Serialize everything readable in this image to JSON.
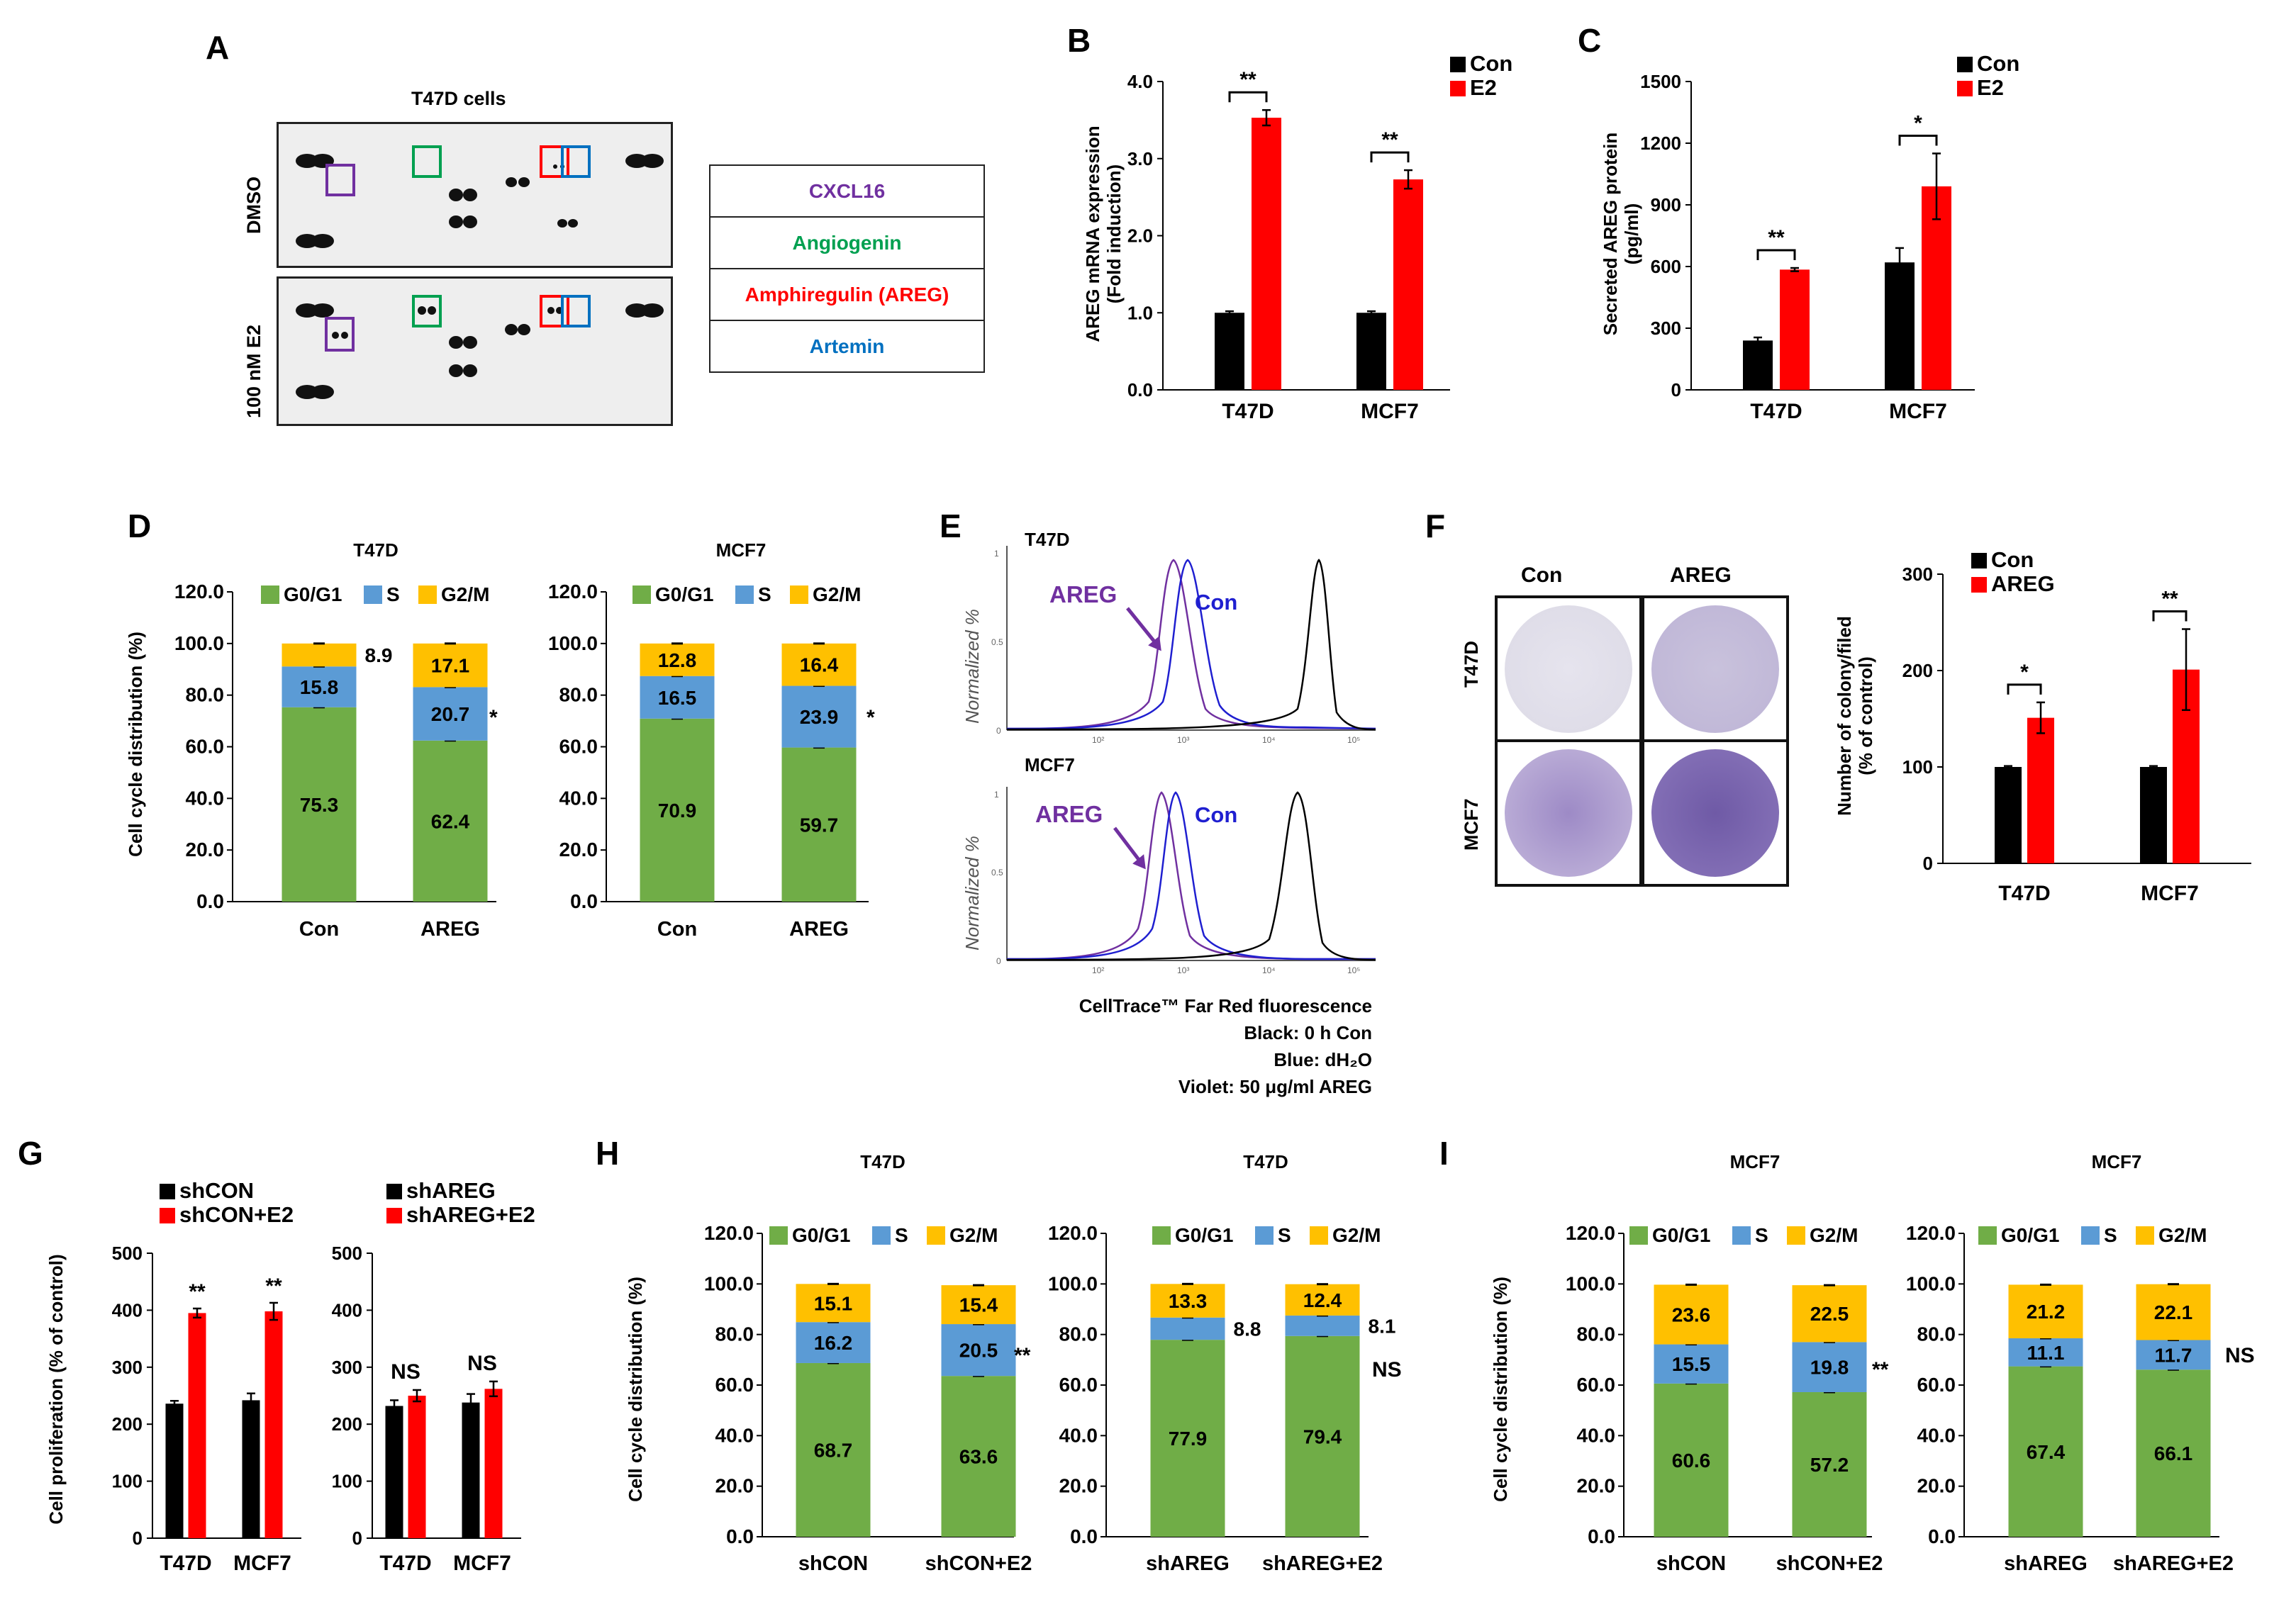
{
  "panel_letters": [
    "A",
    "B",
    "C",
    "D",
    "E",
    "F",
    "G",
    "H",
    "I"
  ],
  "panel_A": {
    "title": "T47D cells",
    "row_labels": [
      "DMSO",
      "100 nM E2"
    ],
    "key": [
      {
        "label": "CXCL16",
        "color": "#7030a0"
      },
      {
        "label": "Angiogenin",
        "color": "#00a050"
      },
      {
        "label": "Amphiregulin (AREG)",
        "color": "#ff0000"
      },
      {
        "label": "Artemin",
        "color": "#0070c0"
      }
    ]
  },
  "panel_E": {
    "row_labels": [
      "T47D",
      "MCF7"
    ],
    "ylabel": "Normalized %",
    "series_labels": {
      "areg": "AREG",
      "con": "Con"
    },
    "yticks": [
      "1",
      "0.5",
      "0"
    ],
    "xticks": [
      "10²",
      "10³",
      "10⁴",
      "10⁵"
    ],
    "caption": [
      "CellTrace™ Far Red fluorescence",
      "Black: 0 h Con",
      "Blue: dH₂O",
      "Violet: 50 μg/ml AREG"
    ],
    "colors": {
      "areg": "#7030a0",
      "con": "#1f1fd0",
      "zero_h": "#000000"
    }
  },
  "panel_F_images": {
    "col_labels": [
      "Con",
      "AREG"
    ],
    "row_labels": [
      "T47D",
      "MCF7"
    ]
  },
  "colors": {
    "black": "#000000",
    "red": "#ff0000",
    "g0g1": "#70ad47",
    "s": "#5b9bd5",
    "g2m": "#ffc000"
  },
  "chart_data": [
    {
      "id": "B",
      "type": "bar",
      "title": "",
      "ylabel": "AREG mRNA expression (Fold induction)",
      "categories": [
        "T47D",
        "MCF7"
      ],
      "series": [
        {
          "name": "Con",
          "values": [
            1.0,
            1.0
          ],
          "errors": [
            0.02,
            0.02
          ],
          "color": "#000000"
        },
        {
          "name": "E2",
          "values": [
            3.53,
            2.73
          ],
          "errors": [
            0.1,
            0.12
          ],
          "color": "#ff0000"
        }
      ],
      "ylim": [
        0,
        4
      ],
      "yticks": [
        "0.0",
        "1.0",
        "2.0",
        "3.0",
        "4.0"
      ],
      "yticks_values": [
        0,
        1,
        2,
        3,
        4
      ],
      "significance": [
        "**",
        "**"
      ]
    },
    {
      "id": "C",
      "type": "bar",
      "title": "",
      "ylabel": "Secreted AREG protein (pg/ml)",
      "categories": [
        "T47D",
        "MCF7"
      ],
      "series": [
        {
          "name": "Con",
          "values": [
            240,
            620
          ],
          "errors": [
            15,
            70
          ],
          "color": "#000000"
        },
        {
          "name": "E2",
          "values": [
            585,
            990
          ],
          "errors": [
            8,
            160
          ],
          "color": "#ff0000"
        }
      ],
      "ylim": [
        0,
        1500
      ],
      "yticks": [
        "0",
        "300",
        "600",
        "900",
        "1200",
        "1500"
      ],
      "yticks_values": [
        0,
        300,
        600,
        900,
        1200,
        1500
      ],
      "significance": [
        "**",
        "*"
      ]
    },
    {
      "id": "D1",
      "type": "stacked_bar",
      "title": "T47D",
      "ylabel": "Cell cycle distribution (%)",
      "categories": [
        "Con",
        "AREG"
      ],
      "series": [
        {
          "name": "G0/G1",
          "values": [
            75.3,
            62.4
          ],
          "labels": [
            "75.3",
            "62.4"
          ]
        },
        {
          "name": "S",
          "values": [
            15.8,
            20.7
          ],
          "labels": [
            "15.8",
            "20.7"
          ]
        },
        {
          "name": "G2/M",
          "values": [
            8.9,
            17.1
          ],
          "labels": [
            "8.9",
            "17.1"
          ]
        }
      ],
      "ylim": [
        0,
        120
      ],
      "annotation": "*"
    },
    {
      "id": "D2",
      "type": "stacked_bar",
      "title": "MCF7",
      "ylabel": "",
      "categories": [
        "Con",
        "AREG"
      ],
      "series": [
        {
          "name": "G0/G1",
          "values": [
            70.9,
            59.7
          ],
          "labels": [
            "70.9",
            "59.7"
          ]
        },
        {
          "name": "S",
          "values": [
            16.5,
            23.9
          ],
          "labels": [
            "16.5",
            "23.9"
          ]
        },
        {
          "name": "G2/M",
          "values": [
            12.8,
            16.4
          ],
          "labels": [
            "12.8",
            "16.4"
          ]
        }
      ],
      "ylim": [
        0,
        120
      ],
      "annotation": "*"
    },
    {
      "id": "F",
      "type": "bar",
      "title": "",
      "ylabel": "Number of colony/filed (% of control)",
      "categories": [
        "T47D",
        "MCF7"
      ],
      "series": [
        {
          "name": "Con",
          "values": [
            100,
            100
          ],
          "errors": [
            1,
            1
          ],
          "color": "#000000"
        },
        {
          "name": "AREG",
          "values": [
            151,
            201
          ],
          "errors": [
            16,
            42
          ],
          "color": "#ff0000"
        }
      ],
      "ylim": [
        0,
        300
      ],
      "yticks": [
        "0",
        "100",
        "200",
        "300"
      ],
      "yticks_values": [
        0,
        100,
        200,
        300
      ],
      "significance": [
        "*",
        "**"
      ]
    },
    {
      "id": "G1",
      "type": "bar",
      "title": "",
      "ylabel": "Cell proliferation (% of control)",
      "categories": [
        "T47D",
        "MCF7"
      ],
      "series": [
        {
          "name": "shCON",
          "values": [
            236,
            242
          ],
          "errors": [
            5,
            12
          ],
          "color": "#000000"
        },
        {
          "name": "shCON+E2",
          "values": [
            395,
            398
          ],
          "errors": [
            8,
            15
          ],
          "color": "#ff0000"
        }
      ],
      "ylim": [
        0,
        500
      ],
      "yticks": [
        "0",
        "100",
        "200",
        "300",
        "400",
        "500"
      ],
      "yticks_values": [
        0,
        100,
        200,
        300,
        400,
        500
      ],
      "significance": [
        "**",
        "**"
      ]
    },
    {
      "id": "G2",
      "type": "bar",
      "title": "",
      "ylabel": "",
      "categories": [
        "T47D",
        "MCF7"
      ],
      "series": [
        {
          "name": "shAREG",
          "values": [
            232,
            238
          ],
          "errors": [
            10,
            15
          ],
          "color": "#000000"
        },
        {
          "name": "shAREG+E2",
          "values": [
            250,
            262
          ],
          "errors": [
            10,
            13
          ],
          "color": "#ff0000"
        }
      ],
      "ylim": [
        0,
        500
      ],
      "yticks": [
        "0",
        "100",
        "200",
        "300",
        "400",
        "500"
      ],
      "yticks_values": [
        0,
        100,
        200,
        300,
        400,
        500
      ],
      "significance": [
        "NS",
        "NS"
      ]
    },
    {
      "id": "H1",
      "type": "stacked_bar",
      "title": "T47D",
      "ylabel": "Cell cycle distribution (%)",
      "categories": [
        "shCON",
        "shCON+E2"
      ],
      "series": [
        {
          "name": "G0/G1",
          "values": [
            68.7,
            63.6
          ],
          "labels": [
            "68.7",
            "63.6"
          ]
        },
        {
          "name": "S",
          "values": [
            16.2,
            20.5
          ],
          "labels": [
            "16.2",
            "20.5"
          ]
        },
        {
          "name": "G2/M",
          "values": [
            15.1,
            15.4
          ],
          "labels": [
            "15.1",
            "15.4"
          ]
        }
      ],
      "ylim": [
        0,
        120
      ],
      "annotation": "**"
    },
    {
      "id": "H2",
      "type": "stacked_bar",
      "title": "T47D",
      "ylabel": "",
      "categories": [
        "shAREG",
        "shAREG+E2"
      ],
      "series": [
        {
          "name": "G0/G1",
          "values": [
            77.9,
            79.4
          ],
          "labels": [
            "77.9",
            "79.4"
          ]
        },
        {
          "name": "S",
          "values": [
            8.8,
            8.1
          ],
          "labels": [
            "8.8",
            "8.1"
          ]
        },
        {
          "name": "G2/M",
          "values": [
            13.3,
            12.4
          ],
          "labels": [
            "13.3",
            "12.4"
          ]
        }
      ],
      "ylim": [
        0,
        120
      ],
      "annotation": "NS"
    },
    {
      "id": "I1",
      "type": "stacked_bar",
      "title": "MCF7",
      "ylabel": "Cell cycle distribution (%)",
      "categories": [
        "shCON",
        "shCON+E2"
      ],
      "series": [
        {
          "name": "G0/G1",
          "values": [
            60.6,
            57.2
          ],
          "labels": [
            "60.6",
            "57.2"
          ]
        },
        {
          "name": "S",
          "values": [
            15.5,
            19.8
          ],
          "labels": [
            "15.5",
            "19.8"
          ]
        },
        {
          "name": "G2/M",
          "values": [
            23.6,
            22.5
          ],
          "labels": [
            "23.6",
            "22.5"
          ]
        }
      ],
      "ylim": [
        0,
        120
      ],
      "annotation": "**"
    },
    {
      "id": "I2",
      "type": "stacked_bar",
      "title": "MCF7",
      "ylabel": "",
      "categories": [
        "shAREG",
        "shAREG+E2"
      ],
      "series": [
        {
          "name": "G0/G1",
          "values": [
            67.4,
            66.1
          ],
          "labels": [
            "67.4",
            "66.1"
          ]
        },
        {
          "name": "S",
          "values": [
            11.1,
            11.7
          ],
          "labels": [
            "11.1",
            "11.7"
          ]
        },
        {
          "name": "G2/M",
          "values": [
            21.2,
            22.1
          ],
          "labels": [
            "21.2",
            "22.1"
          ]
        }
      ],
      "ylim": [
        0,
        120
      ],
      "annotation": "NS"
    }
  ],
  "stacked_yticks": [
    "0.0",
    "20.0",
    "40.0",
    "60.0",
    "80.0",
    "100.0",
    "120.0"
  ]
}
